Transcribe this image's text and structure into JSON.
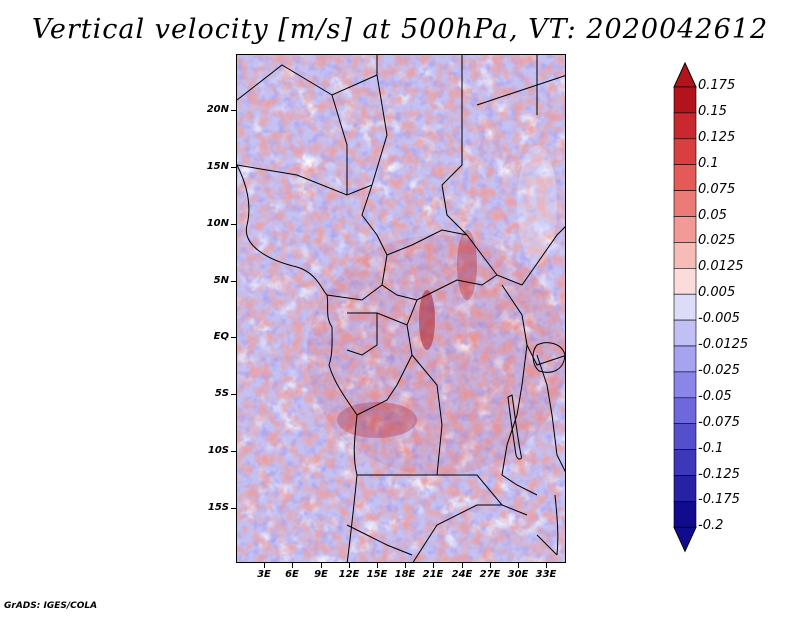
{
  "title": "Vertical velocity [m/s] at 500hPa, VT: 2020042612",
  "credit": "GrADS: IGES/COLA",
  "latitude_labels": [
    "20N",
    "15N",
    "10N",
    "5N",
    "EQ",
    "5S",
    "10S",
    "15S"
  ],
  "longitude_labels": [
    "3E",
    "6E",
    "9E",
    "12E",
    "15E",
    "18E",
    "21E",
    "24E",
    "27E",
    "30E",
    "33E"
  ],
  "colorbar": {
    "levels": [
      "0.175",
      "0.15",
      "0.125",
      "0.1",
      "0.075",
      "0.05",
      "0.025",
      "0.0125",
      "0.005",
      "-0.005",
      "-0.0125",
      "-0.025",
      "-0.05",
      "-0.075",
      "-0.1",
      "-0.125",
      "-0.175",
      "-0.2"
    ],
    "colors": [
      "#b3141c",
      "#c8282e",
      "#d8403f",
      "#e45a56",
      "#ec7a76",
      "#f29a96",
      "#f7bcb8",
      "#fbdcda",
      "#ffffff",
      "#dcdcf8",
      "#c1bff3",
      "#a6a3ef",
      "#8a86e8",
      "#6d69dc",
      "#5450cc",
      "#3d38b9",
      "#2622a3",
      "#110c8d"
    ]
  }
}
